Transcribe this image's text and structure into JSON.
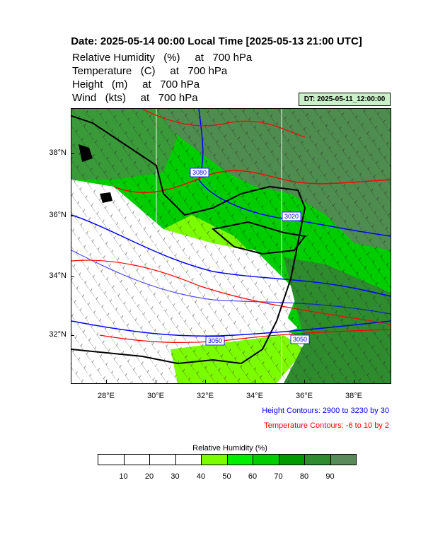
{
  "title": "Date: 2025-05-14  00:00 Local Time [2025-05-13  21:00 UTC]",
  "variables": [
    "Relative Humidity   (%)     at   700 hPa",
    "Temperature   (C)     at   700 hPa",
    "Height   (m)     at   700 hPa",
    "Wind   (kts)     at   700 hPa"
  ],
  "dt_label": "DT: 2025-05-11_12:00:00",
  "lat_labels": [
    "38°N",
    "36°N",
    "34°N",
    "32°N"
  ],
  "lon_labels": [
    "28°E",
    "30°E",
    "32°E",
    "34°E",
    "36°E",
    "38°E"
  ],
  "height_contours_note": "Height Contours: 2900 to 3230 by 30",
  "temperature_contours_note": "Temperature Contours: -6 to 10 by 2",
  "height_contour_labels": [
    "3080",
    "3020",
    "3050",
    "3050"
  ],
  "legend": {
    "title": "Relative Humidity  (%)",
    "ticks": [
      "10",
      "20",
      "30",
      "40",
      "50",
      "60",
      "70",
      "80",
      "90"
    ],
    "colors": [
      "#ffffff",
      "#ffffff",
      "#ffffff",
      "#ffffff",
      "#7cfc00",
      "#00ee00",
      "#00cd00",
      "#009900",
      "#2e8b2e",
      "#5a8a5a"
    ]
  },
  "colors": {
    "height_contour": "#0000ff",
    "temperature_contour": "#ff0000",
    "dt_box": "#c9f0c9"
  }
}
